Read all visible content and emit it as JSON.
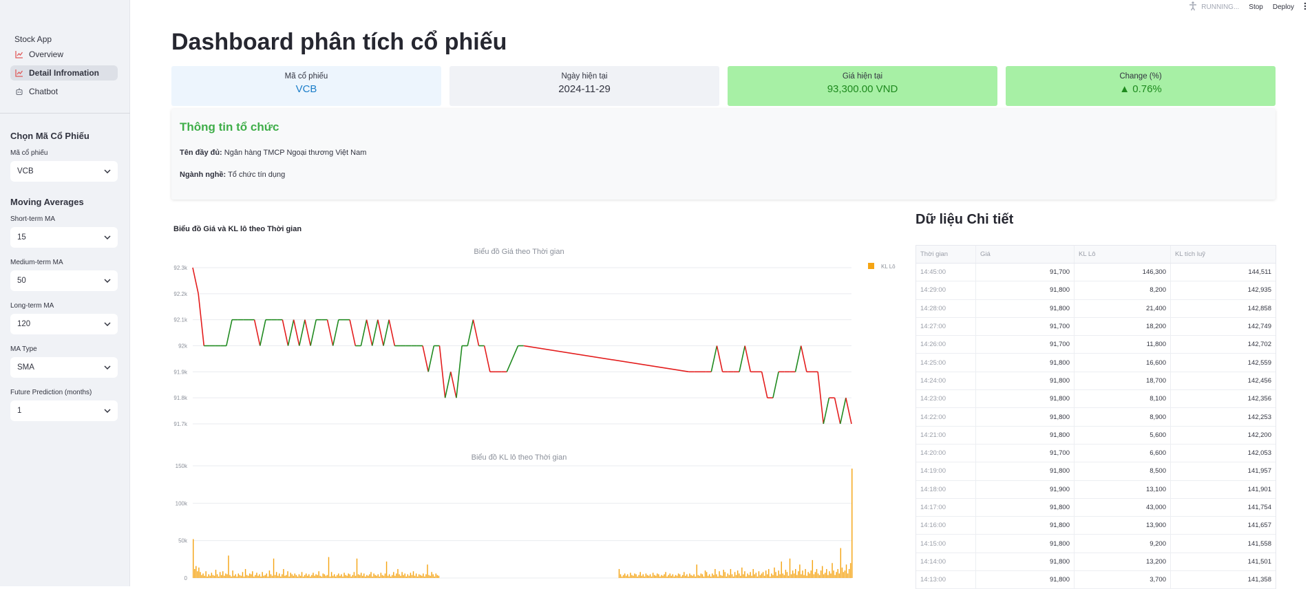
{
  "sidebar": {
    "app_title": "Stock App",
    "nav": [
      {
        "label": "Overview",
        "icon": "chart-icon",
        "active": false
      },
      {
        "label": "Detail Infromation",
        "icon": "chart-icon",
        "active": true
      },
      {
        "label": "Chatbot",
        "icon": "robot-icon",
        "active": false
      }
    ],
    "stock_section": "Chọn Mã Cổ Phiếu",
    "stock_label": "Mã cổ phiếu",
    "stock_value": "VCB",
    "ma_section": "Moving Averages",
    "short_label": "Short-term MA",
    "short_value": "15",
    "medium_label": "Medium-term MA",
    "medium_value": "50",
    "long_label": "Long-term MA",
    "long_value": "120",
    "type_label": "MA Type",
    "type_value": "SMA",
    "future_label": "Future Prediction (months)",
    "future_value": "1"
  },
  "topbar": {
    "running": "RUNNING...",
    "stop": "Stop",
    "deploy": "Deploy"
  },
  "page_title": "Dashboard phân tích cổ phiếu",
  "metrics": {
    "symbol_label": "Mã cổ phiếu",
    "symbol_value": "VCB",
    "date_label": "Ngày hiện tại",
    "date_value": "2024-11-29",
    "price_label": "Giá hiện tại",
    "price_value": "93,300.00 VND",
    "change_label": "Change (%)",
    "change_value": "▲ 0.76%"
  },
  "colors": {
    "symbol_bg": "#edf5fd",
    "symbol_text": "#1c7ec9",
    "date_bg": "#f0f2f6",
    "green_bg": "#a7f0a5",
    "green_text": "#1e8a1e",
    "up": "#1f8a1f",
    "down": "#e31c1c",
    "volume": "#f5a413"
  },
  "org": {
    "title": "Thông tin tổ chức",
    "fullname_label": "Tên đầy đủ:",
    "fullname_value": " Ngân hàng TMCP Ngoại thương Việt Nam",
    "industry_label": "Ngành nghề:",
    "industry_value": " Tổ chức tín dụng"
  },
  "charts_title": "Biểu đồ Giá và KL lô theo Thời gian",
  "chart_data": [
    {
      "type": "line",
      "title": "Biểu đồ Giá theo Thời gian",
      "y_ticks": [
        "92.3k",
        "92.2k",
        "92.1k",
        "92k",
        "91.9k",
        "91.8k",
        "91.7k"
      ],
      "ylim": [
        91700,
        92300
      ],
      "legend": "KL Lô",
      "legend_placement": "top-right",
      "values": [
        92300,
        92200,
        92000,
        92000,
        92000,
        92000,
        92000,
        92100,
        92100,
        92100,
        92100,
        92100,
        92000,
        92100,
        92100,
        92100,
        92100,
        92000,
        92100,
        92000,
        92100,
        92000,
        92100,
        92100,
        92100,
        92000,
        92100,
        92100,
        92100,
        92000,
        92000,
        92100,
        92000,
        92100,
        92000,
        92100,
        92000,
        92000,
        92000,
        92000,
        92000,
        92000,
        91900,
        92000,
        92000,
        91800,
        91900,
        91800,
        92000,
        92000,
        92100,
        92000,
        92000,
        91900,
        91900,
        91900,
        91900,
        91950,
        92000,
        92000,
        91900,
        91900,
        91900,
        91900,
        91900,
        92000,
        91900,
        91900,
        91900,
        91900,
        92000,
        91900,
        91900,
        91900,
        91800,
        91800,
        91900,
        91900,
        91900,
        91900,
        92000,
        91900,
        91900,
        91900,
        91700,
        91800,
        91800,
        91700,
        91800,
        91700
      ]
    },
    {
      "type": "bar",
      "title": "Biểu đồ KL lô theo Thời gian",
      "y_ticks": [
        "150k",
        "100k",
        "50k",
        "0"
      ],
      "ylim": [
        0,
        150000
      ],
      "values": [
        52000,
        12000,
        16000,
        9000,
        14000,
        8000,
        4000,
        6000,
        3000,
        9000,
        2000,
        5000,
        3000,
        7000,
        4000,
        3000,
        11000,
        5000,
        2000,
        8000,
        4000,
        9000,
        3000,
        6000,
        5000,
        30000,
        4000,
        2000,
        10000,
        3000,
        5000,
        2000,
        6000,
        4000,
        3000,
        8000,
        2000,
        12000,
        4000,
        3000,
        6000,
        5000,
        9000,
        2000,
        4000,
        7000,
        3000,
        5000,
        2000,
        8000,
        3000,
        4000,
        6000,
        2000,
        10000,
        5000,
        3000,
        26000,
        4000,
        8000,
        3000,
        6000,
        2000,
        5000,
        12000,
        3000,
        4000,
        9000,
        2000,
        7000,
        5000,
        3000,
        6000,
        4000,
        2000,
        5000,
        3000,
        8000,
        2000,
        4000,
        6000,
        3000,
        5000,
        2000,
        4000,
        7000,
        3000,
        5000,
        4000,
        9000,
        3000,
        2000,
        6000,
        5000,
        3000,
        4000,
        28000,
        2000,
        8000,
        3000,
        5000,
        2000,
        4000,
        6000,
        3000,
        5000,
        2000,
        7000,
        4000,
        3000,
        6000,
        5000,
        2000,
        4000,
        8000,
        3000,
        26000,
        5000,
        4000,
        7000,
        3000,
        6000,
        2000,
        4000,
        3000,
        5000,
        8000,
        2000,
        6000,
        4000,
        3000,
        5000,
        2000,
        7000,
        4000,
        3000,
        6000,
        22000,
        3000,
        5000,
        2000,
        4000,
        8000,
        3000,
        6000,
        12000,
        5000,
        3000,
        8000,
        4000,
        6000,
        2000,
        5000,
        3000,
        7000,
        4000,
        9000,
        3000,
        6000,
        2000,
        5000,
        4000,
        3000,
        6000,
        2000,
        5000,
        18000,
        4000,
        3000,
        8000,
        5000,
        2000,
        6000,
        4000,
        3000,
        12000,
        5000,
        2000,
        4000,
        6000,
        3000,
        5000,
        2000,
        7000,
        4000,
        3000,
        6000,
        5000,
        2000,
        4000,
        8000,
        3000,
        5000,
        2000,
        6000,
        4000,
        3000,
        5000,
        2000,
        7000,
        4000,
        3000,
        6000,
        5000,
        2000,
        4000,
        3000,
        5000,
        8000,
        2000,
        4000,
        6000,
        3000,
        5000,
        2000,
        4000,
        3000,
        6000,
        5000,
        2000,
        4000,
        8000,
        3000,
        5000,
        2000,
        6000,
        4000,
        3000,
        5000,
        2000,
        18000,
        4000,
        3000,
        6000,
        5000,
        2000,
        10000,
        8000,
        3000,
        5000,
        2000,
        6000,
        4000,
        12000,
        5000,
        2000,
        9000,
        4000,
        3000,
        11000,
        8000,
        2000,
        6000,
        4000,
        12000,
        5000,
        2000,
        8000,
        4000,
        10000,
        6000,
        3000,
        14000,
        5000,
        9000,
        2000,
        6000,
        4000,
        8000,
        3000,
        12000,
        5000,
        7000,
        2000,
        9000,
        4000,
        6000,
        8000,
        3000,
        10000,
        5000,
        12000,
        2000,
        6000,
        4000,
        14000,
        8000,
        3000,
        10000,
        5000,
        22000,
        6000,
        4000,
        11000,
        8000,
        3000,
        26000,
        5000,
        10000,
        6000,
        12000,
        4000,
        9000,
        18000,
        5000,
        10000,
        4000,
        12000,
        3000,
        8000,
        6000,
        10000,
        24000,
        5000,
        8000,
        12000,
        6000,
        4000,
        10000,
        16000,
        5000,
        7000,
        12000,
        4000,
        9000,
        6000,
        20000,
        10000,
        4000,
        8000,
        12000,
        6000,
        40000,
        14000,
        8000,
        10000,
        18000,
        6000,
        12000,
        20000,
        146300
      ]
    }
  ],
  "detail": {
    "title": "Dữ liệu Chi tiết",
    "headers": [
      "Thời gian",
      "Giá",
      "KL Lô",
      "KL tích luỹ"
    ],
    "rows": [
      [
        "14:45:00",
        "91,700",
        "146,300",
        "144,511"
      ],
      [
        "14:29:00",
        "91,800",
        "8,200",
        "142,935"
      ],
      [
        "14:28:00",
        "91,800",
        "21,400",
        "142,858"
      ],
      [
        "14:27:00",
        "91,700",
        "18,200",
        "142,749"
      ],
      [
        "14:26:00",
        "91,700",
        "11,800",
        "142,702"
      ],
      [
        "14:25:00",
        "91,800",
        "16,600",
        "142,559"
      ],
      [
        "14:24:00",
        "91,800",
        "18,700",
        "142,456"
      ],
      [
        "14:23:00",
        "91,800",
        "8,100",
        "142,356"
      ],
      [
        "14:22:00",
        "91,800",
        "8,900",
        "142,253"
      ],
      [
        "14:21:00",
        "91,800",
        "5,600",
        "142,200"
      ],
      [
        "14:20:00",
        "91,700",
        "6,600",
        "142,053"
      ],
      [
        "14:19:00",
        "91,800",
        "8,500",
        "141,957"
      ],
      [
        "14:18:00",
        "91,900",
        "13,100",
        "141,901"
      ],
      [
        "14:17:00",
        "91,800",
        "43,000",
        "141,754"
      ],
      [
        "14:16:00",
        "91,800",
        "13,900",
        "141,657"
      ],
      [
        "14:15:00",
        "91,800",
        "9,200",
        "141,558"
      ],
      [
        "14:14:00",
        "91,800",
        "13,200",
        "141,501"
      ],
      [
        "14:13:00",
        "91,800",
        "3,700",
        "141,358"
      ]
    ]
  }
}
